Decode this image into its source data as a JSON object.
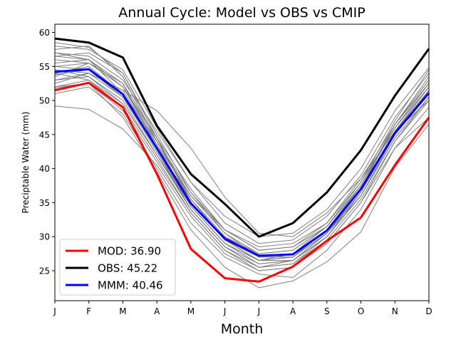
{
  "chart_data": {
    "type": "line",
    "title": "Annual Cycle: Model vs OBS vs CMIP",
    "xlabel": "Month",
    "ylabel": "Preciptable Water (mm)",
    "categories": [
      "J",
      "F",
      "M",
      "A",
      "M",
      "J",
      "J",
      "A",
      "S",
      "O",
      "N",
      "D"
    ],
    "ylim": [
      20.6,
      61.2
    ],
    "yticks": [
      25,
      30,
      35,
      40,
      45,
      50,
      55,
      60
    ],
    "legend_position": "lower-left",
    "series": [
      {
        "name": "MOD",
        "legend_label": "MOD: 36.90",
        "color": "#ff0000",
        "values": [
          51.5,
          52.6,
          49.0,
          39.2,
          28.2,
          23.9,
          23.4,
          25.6,
          29.4,
          32.8,
          40.5,
          47.5
        ]
      },
      {
        "name": "OBS",
        "legend_label": "OBS: 45.22",
        "color": "#000000",
        "values": [
          59.1,
          58.5,
          56.3,
          46.3,
          39.2,
          34.8,
          30.0,
          32.0,
          36.5,
          42.7,
          50.7,
          57.6
        ]
      },
      {
        "name": "MMM",
        "legend_label": "MMM: 40.46",
        "color": "#0000ff",
        "values": [
          54.2,
          54.6,
          50.9,
          43.0,
          34.9,
          29.7,
          27.2,
          27.4,
          30.9,
          37.0,
          45.2,
          51.1
        ]
      }
    ],
    "cmip_color": "#808080",
    "cmip_series": [
      [
        58.5,
        57.8,
        54.0,
        44.5,
        37.0,
        31.0,
        28.5,
        29.0,
        32.0,
        38.5,
        46.5,
        53.0
      ],
      [
        56.5,
        56.0,
        52.5,
        43.0,
        35.5,
        30.0,
        27.5,
        28.0,
        31.5,
        37.5,
        46.0,
        52.5
      ],
      [
        54.0,
        55.0,
        51.0,
        44.0,
        36.0,
        30.5,
        27.0,
        27.5,
        31.0,
        37.0,
        45.0,
        51.0
      ],
      [
        52.0,
        53.0,
        49.5,
        42.0,
        34.5,
        29.0,
        26.5,
        27.0,
        30.5,
        36.0,
        44.5,
        50.5
      ],
      [
        49.2,
        48.7,
        45.8,
        40.5,
        33.0,
        27.5,
        25.0,
        25.5,
        29.0,
        35.0,
        43.0,
        47.5
      ],
      [
        57.0,
        56.5,
        53.0,
        45.5,
        38.0,
        32.0,
        29.0,
        29.5,
        33.0,
        39.0,
        47.5,
        54.0
      ],
      [
        55.0,
        54.5,
        50.5,
        42.5,
        34.0,
        28.5,
        26.0,
        26.5,
        30.0,
        36.5,
        45.5,
        51.5
      ],
      [
        53.5,
        55.5,
        52.0,
        44.5,
        35.0,
        29.5,
        27.0,
        27.0,
        30.5,
        37.0,
        45.5,
        52.0
      ],
      [
        51.8,
        52.5,
        48.5,
        41.0,
        33.5,
        28.0,
        25.5,
        26.0,
        29.5,
        35.5,
        44.0,
        50.0
      ],
      [
        54.5,
        54.0,
        51.5,
        43.5,
        36.0,
        31.0,
        28.0,
        28.5,
        31.5,
        37.5,
        46.0,
        52.0
      ],
      [
        56.0,
        55.5,
        52.0,
        44.0,
        35.5,
        29.5,
        26.5,
        27.5,
        31.0,
        37.0,
        45.0,
        51.5
      ],
      [
        53.0,
        53.5,
        50.0,
        42.0,
        34.0,
        28.5,
        25.5,
        26.0,
        30.0,
        36.0,
        44.5,
        50.5
      ],
      [
        58.0,
        57.5,
        54.5,
        46.0,
        38.0,
        33.0,
        30.0,
        30.5,
        34.0,
        40.0,
        48.5,
        54.8
      ],
      [
        55.5,
        56.0,
        51.0,
        43.0,
        34.5,
        29.0,
        26.5,
        26.5,
        30.5,
        36.5,
        45.5,
        52.0
      ],
      [
        52.5,
        54.0,
        51.5,
        48.5,
        43.0,
        35.8,
        30.5,
        30.0,
        33.5,
        38.5,
        45.5,
        50.0
      ],
      [
        57.5,
        58.0,
        53.5,
        44.0,
        36.5,
        31.0,
        28.0,
        28.5,
        32.0,
        38.0,
        47.0,
        54.5
      ],
      [
        54.0,
        53.0,
        49.0,
        41.5,
        33.5,
        28.0,
        25.0,
        25.5,
        29.0,
        35.0,
        44.0,
        50.5
      ],
      [
        51.0,
        52.0,
        48.0,
        40.0,
        32.0,
        27.0,
        24.5,
        24.0,
        28.0,
        34.0,
        43.0,
        49.0
      ],
      [
        56.5,
        57.0,
        54.0,
        45.0,
        36.5,
        30.5,
        27.5,
        28.0,
        31.5,
        37.5,
        46.5,
        53.5
      ],
      [
        53.8,
        54.5,
        50.5,
        42.5,
        34.5,
        29.0,
        26.0,
        26.5,
        30.0,
        36.0,
        45.0,
        51.0
      ],
      [
        52.0,
        52.5,
        47.5,
        39.5,
        31.0,
        25.5,
        22.5,
        23.5,
        26.3,
        30.7,
        40.2,
        46.5
      ],
      [
        55.0,
        55.5,
        52.5,
        44.5,
        35.5,
        30.0,
        27.0,
        27.0,
        30.5,
        37.0,
        46.5,
        52.5
      ],
      [
        54.5,
        53.5,
        49.5,
        42.0,
        34.0,
        28.5,
        25.5,
        26.5,
        30.5,
        36.5,
        45.0,
        51.5
      ],
      [
        57.0,
        56.0,
        52.0,
        43.5,
        35.0,
        29.5,
        26.5,
        27.5,
        31.5,
        38.0,
        46.0,
        52.5
      ],
      [
        53.0,
        54.0,
        50.5,
        43.0,
        35.0,
        29.5,
        26.5,
        27.0,
        31.0,
        37.5,
        46.5,
        53.0
      ]
    ]
  }
}
